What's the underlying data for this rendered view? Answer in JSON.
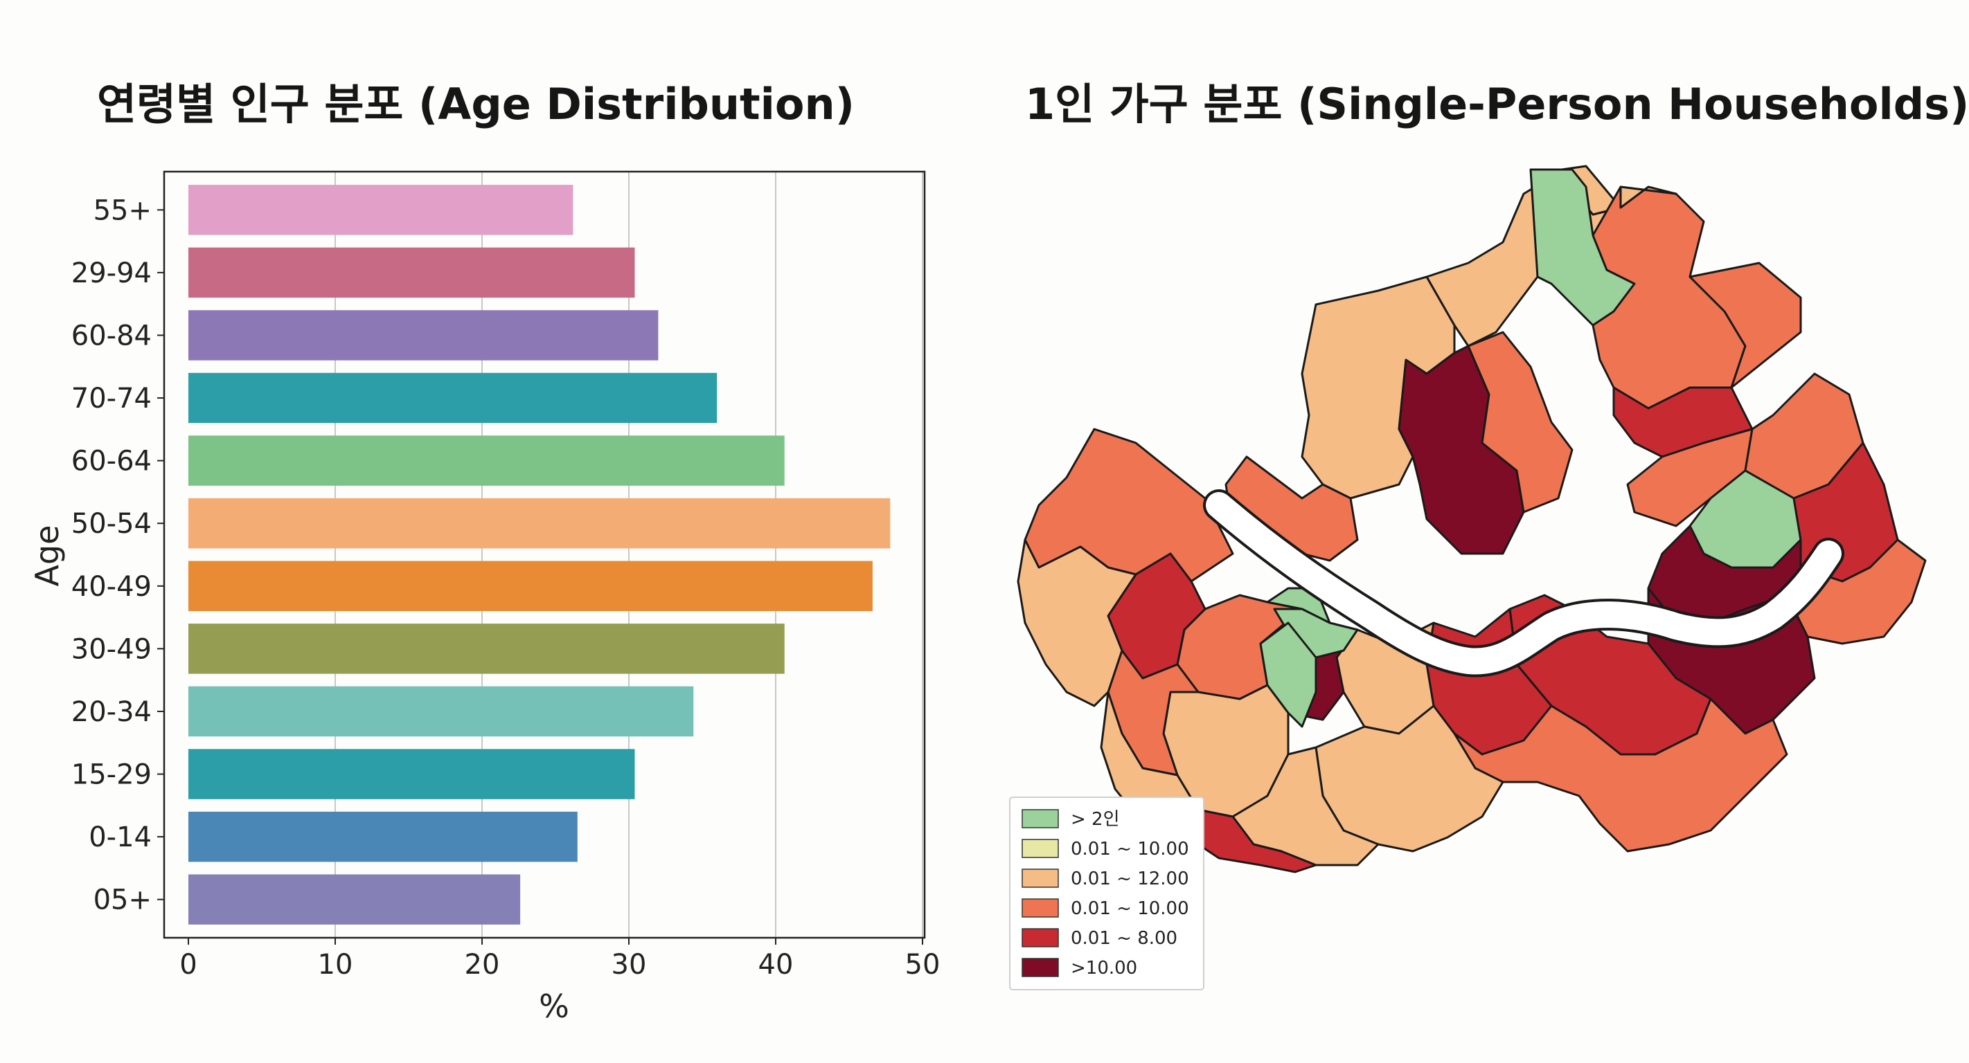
{
  "titles": {
    "left": "연령별 인구 분포 (Age Distribution)",
    "right": "1인 가구 분포 (Single-Person Households)"
  },
  "chart_data": [
    {
      "type": "bar",
      "orientation": "horizontal",
      "title": "연령별 인구 분포 (Age Distribution)",
      "xlabel": "%",
      "ylabel": "Age",
      "xlim": [
        0,
        50
      ],
      "xticks": [
        0,
        10,
        20,
        30,
        40,
        50
      ],
      "grid": "vertical",
      "categories": [
        "55+",
        "29-94",
        "60-84",
        "70-74",
        "60-64",
        "50-54",
        "40-49",
        "30-49",
        "20-34",
        "15-29",
        "0-14",
        "05+"
      ],
      "values": [
        26.2,
        30.4,
        32.0,
        36.0,
        40.6,
        47.8,
        46.6,
        40.6,
        34.4,
        30.4,
        26.5,
        22.6
      ],
      "colors": [
        "#e2a0c8",
        "#c66a86",
        "#8b78b5",
        "#2b9ea8",
        "#7dc387",
        "#f4ac75",
        "#e98a34",
        "#949d52",
        "#76c1b7",
        "#2b9ea8",
        "#4a86b6",
        "#8580b6"
      ]
    },
    {
      "type": "choropleth",
      "title": "1인 가구 분포 (Single-Person Households)",
      "legend_position": "bottom-left",
      "legend": [
        {
          "label": "> 2인",
          "color": "#9bd19a"
        },
        {
          "label": "0.01 ~ 10.00",
          "color": "#e8e8a6"
        },
        {
          "label": "0.01 ~ 12.00",
          "color": "#f6bc86"
        },
        {
          "label": "0.01 ~ 10.00",
          "color": "#ef7552"
        },
        {
          "label": "0.01 ~ 8.00",
          "color": "#c82a32"
        },
        {
          "label": ">10.00",
          "color": "#7e0c26"
        }
      ]
    }
  ],
  "icons": {
    "map": "choropleth-map"
  }
}
